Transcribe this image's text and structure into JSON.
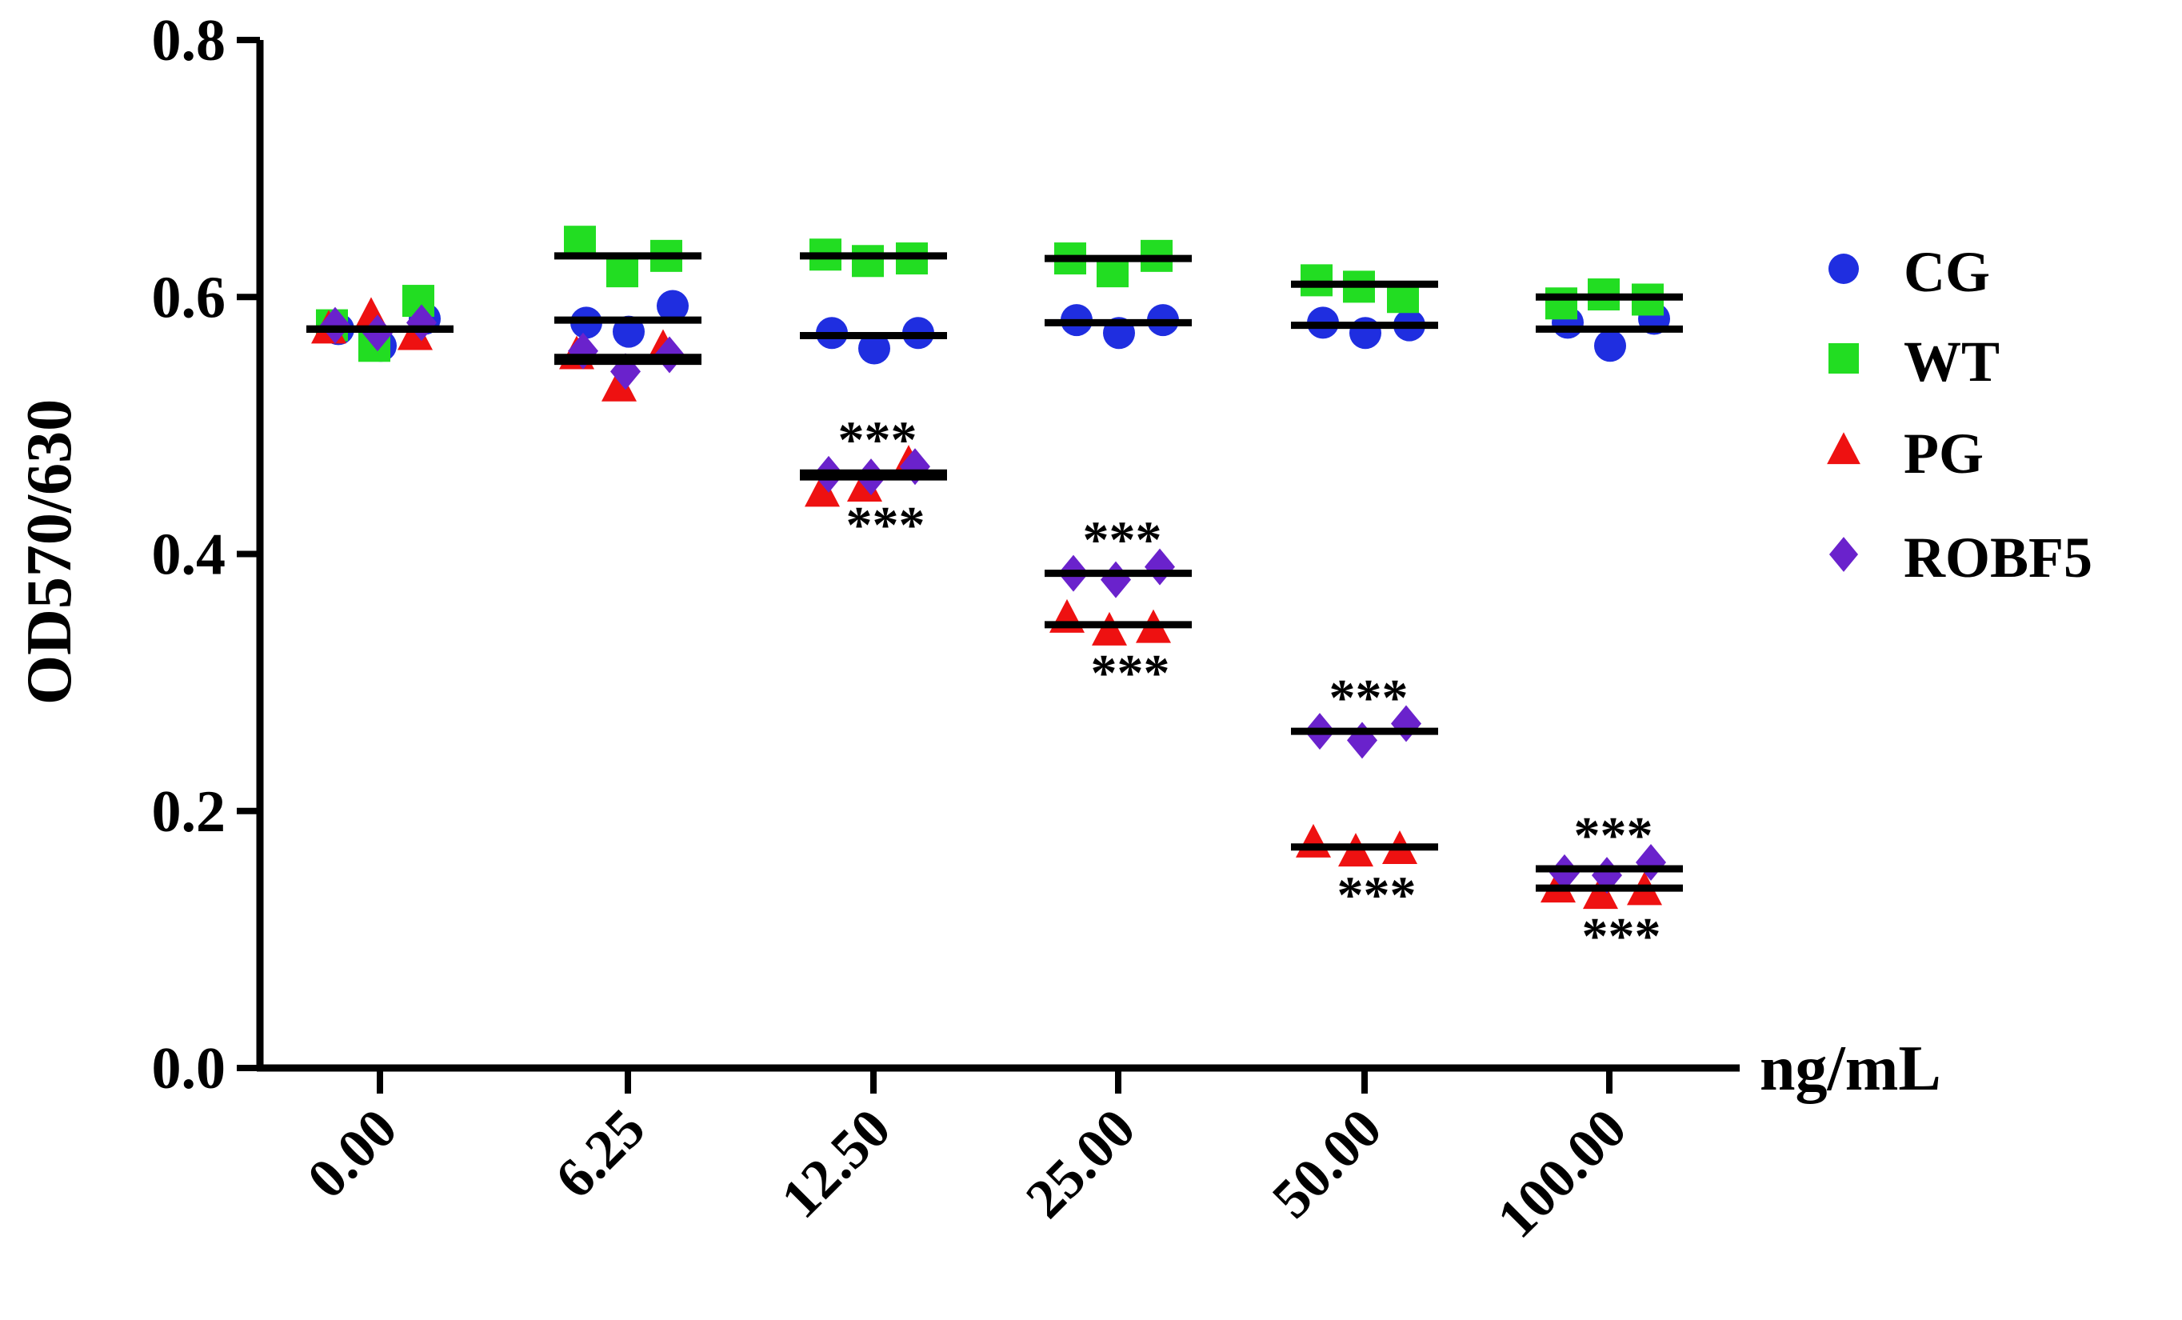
{
  "chart_data": {
    "type": "scatter",
    "title": "",
    "xlabel": "ng/mL",
    "ylabel": "OD570/630",
    "ylim": [
      0,
      0.8
    ],
    "y_ticks": [
      "0.0",
      "0.2",
      "0.4",
      "0.6",
      "0.8"
    ],
    "categories": [
      "0.00",
      "6.25",
      "12.50",
      "25.00",
      "50.00",
      "100.00"
    ],
    "legend_position": "right",
    "significance_marker": "***",
    "series": [
      {
        "name": "CG",
        "color": "#1f2ee0",
        "marker": "circle",
        "means": [
          0.575,
          0.582,
          0.57,
          0.58,
          0.578,
          0.575
        ],
        "points": [
          [
            0.575,
            0.562,
            0.583
          ],
          [
            0.58,
            0.573,
            0.593
          ],
          [
            0.572,
            0.56,
            0.572
          ],
          [
            0.582,
            0.572,
            0.582
          ],
          [
            0.58,
            0.572,
            0.578
          ],
          [
            0.58,
            0.562,
            0.583
          ]
        ],
        "significance": [
          false,
          false,
          false,
          false,
          false,
          false
        ]
      },
      {
        "name": "WT",
        "color": "#22dd22",
        "marker": "square",
        "means": [
          0.575,
          0.632,
          0.632,
          0.63,
          0.61,
          0.6
        ],
        "points": [
          [
            0.578,
            0.562,
            0.597
          ],
          [
            0.643,
            0.62,
            0.632
          ],
          [
            0.633,
            0.628,
            0.63
          ],
          [
            0.63,
            0.62,
            0.632
          ],
          [
            0.613,
            0.608,
            0.6
          ],
          [
            0.595,
            0.602,
            0.598
          ]
        ],
        "significance": [
          false,
          false,
          false,
          false,
          false,
          false
        ]
      },
      {
        "name": "PG",
        "color": "#ee1111",
        "marker": "triangle",
        "means": [
          0.575,
          0.55,
          0.46,
          0.345,
          0.172,
          0.14
        ],
        "points": [
          [
            0.575,
            0.585,
            0.57
          ],
          [
            0.555,
            0.53,
            0.56
          ],
          [
            0.448,
            0.452,
            0.47
          ],
          [
            0.35,
            0.34,
            0.342
          ],
          [
            0.175,
            0.168,
            0.17
          ],
          [
            0.14,
            0.135,
            0.138
          ]
        ],
        "significance": [
          false,
          false,
          true,
          true,
          true,
          true
        ]
      },
      {
        "name": "ROBF5",
        "color": "#6a22cc",
        "marker": "diamond",
        "means": [
          0.575,
          0.553,
          0.463,
          0.385,
          0.262,
          0.155
        ],
        "points": [
          [
            0.578,
            0.572,
            0.58
          ],
          [
            0.558,
            0.542,
            0.555
          ],
          [
            0.462,
            0.46,
            0.468
          ],
          [
            0.385,
            0.38,
            0.39
          ],
          [
            0.262,
            0.255,
            0.268
          ],
          [
            0.152,
            0.15,
            0.16
          ]
        ],
        "significance": [
          false,
          false,
          true,
          true,
          true,
          true
        ]
      }
    ]
  }
}
